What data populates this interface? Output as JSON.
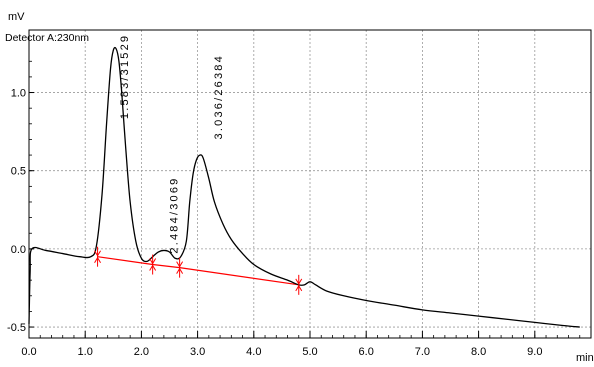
{
  "chart_data": {
    "type": "line",
    "y_unit": "mV",
    "x_unit": "min",
    "detector_label": "Detector A:230nm",
    "xlim": [
      0.0,
      10.0
    ],
    "ylim": [
      -0.57,
      1.4
    ],
    "x_ticks": [
      0.0,
      1.0,
      2.0,
      3.0,
      4.0,
      5.0,
      6.0,
      7.0,
      8.0,
      9.0
    ],
    "x_tick_labels": [
      "0.0",
      "1.0",
      "2.0",
      "3.0",
      "4.0",
      "5.0",
      "6.0",
      "7.0",
      "8.0",
      "9.0"
    ],
    "y_ticks": [
      -0.5,
      0.0,
      0.5,
      1.0
    ],
    "y_tick_labels": [
      "-0.5",
      "0.0",
      "0.5",
      "1.0"
    ],
    "grid": true,
    "colors": {
      "trace": "#000000",
      "baseline": "#ff0000",
      "grid": "#9a9a9a"
    },
    "series": [
      {
        "x": [
          0.0,
          0.02,
          0.05,
          0.3,
          0.6,
          0.9,
          1.1,
          1.2,
          1.3,
          1.38,
          1.45,
          1.5,
          1.55,
          1.6,
          1.65,
          1.72,
          1.8,
          1.9,
          2.0,
          2.1,
          2.2,
          2.3,
          2.4,
          2.5,
          2.6,
          2.7,
          2.8,
          2.86,
          2.92,
          2.98,
          3.04,
          3.1,
          3.2,
          3.3,
          3.45,
          3.6,
          3.8,
          4.0,
          4.3,
          4.6,
          4.8,
          4.9,
          5.0,
          5.1,
          5.3,
          5.6,
          6.0,
          6.5,
          7.0,
          7.5,
          8.0,
          8.5,
          9.0,
          9.5,
          9.8
        ],
        "y": [
          -0.48,
          -0.15,
          0.0,
          -0.01,
          -0.03,
          -0.05,
          -0.05,
          0.02,
          0.35,
          0.8,
          1.15,
          1.27,
          1.28,
          1.2,
          1.0,
          0.65,
          0.3,
          0.05,
          -0.06,
          -0.08,
          -0.05,
          -0.02,
          -0.01,
          -0.02,
          -0.06,
          -0.05,
          0.05,
          0.3,
          0.48,
          0.57,
          0.6,
          0.58,
          0.45,
          0.3,
          0.16,
          0.06,
          -0.03,
          -0.1,
          -0.16,
          -0.2,
          -0.23,
          -0.23,
          -0.21,
          -0.23,
          -0.27,
          -0.3,
          -0.33,
          -0.36,
          -0.39,
          -0.41,
          -0.43,
          -0.45,
          -0.47,
          -0.49,
          -0.5
        ]
      }
    ],
    "baseline_segments": [
      {
        "x": [
          1.22,
          2.2
        ],
        "y": [
          -0.05,
          -0.1
        ]
      },
      {
        "x": [
          2.2,
          2.68
        ],
        "y": [
          -0.1,
          -0.12
        ]
      },
      {
        "x": [
          2.68,
          4.8
        ],
        "y": [
          -0.12,
          -0.23
        ]
      }
    ],
    "integration_markers": [
      {
        "x": 1.22,
        "y": -0.05
      },
      {
        "x": 2.2,
        "y": -0.1
      },
      {
        "x": 2.68,
        "y": -0.12
      },
      {
        "x": 4.8,
        "y": -0.23
      }
    ],
    "peak_labels": [
      {
        "text": "1.583/31529",
        "x": 1.76,
        "y": 0.83
      },
      {
        "text": "2.484/3069",
        "x": 2.64,
        "y": -0.03
      },
      {
        "text": "3.036/26384",
        "x": 3.43,
        "y": 0.7
      }
    ]
  }
}
